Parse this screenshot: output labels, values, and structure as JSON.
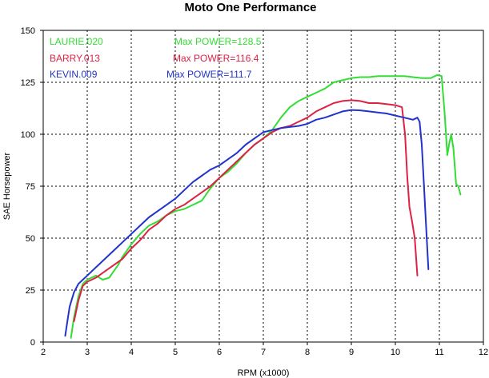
{
  "chart_data": {
    "type": "line",
    "title": "Moto One Performance",
    "xlabel": "RPM (x1000)",
    "ylabel": "SAE Horsepower",
    "xlim": [
      2,
      12
    ],
    "ylim": [
      0,
      150
    ],
    "xticks": [
      2,
      3,
      4,
      5,
      6,
      7,
      8,
      9,
      10,
      11,
      12
    ],
    "yticks": [
      0,
      25,
      50,
      75,
      100,
      125,
      150
    ],
    "grid": true,
    "legend_placement": "top-left",
    "series": [
      {
        "name": "LAURIE.020",
        "annotation": "Max POWER=128.5",
        "color": "#33dd33",
        "x": [
          2.63,
          2.7,
          2.8,
          2.9,
          3.0,
          3.1,
          3.2,
          3.35,
          3.5,
          3.6,
          3.7,
          3.8,
          3.9,
          4.0,
          4.2,
          4.4,
          4.6,
          4.8,
          5.0,
          5.2,
          5.4,
          5.6,
          5.8,
          6.0,
          6.2,
          6.4,
          6.6,
          6.8,
          7.0,
          7.2,
          7.4,
          7.6,
          7.8,
          8.0,
          8.2,
          8.4,
          8.6,
          8.8,
          9.0,
          9.2,
          9.4,
          9.6,
          9.8,
          10.0,
          10.2,
          10.4,
          10.6,
          10.8,
          10.95,
          11.05,
          11.12,
          11.18,
          11.22,
          11.27,
          11.32,
          11.38,
          11.43,
          11.48
        ],
        "values": [
          2,
          12,
          22,
          28,
          30,
          31,
          32,
          30,
          31,
          34,
          37,
          41,
          44,
          47,
          52,
          56,
          58,
          61,
          63,
          64,
          66,
          68,
          74,
          79,
          82,
          86,
          91,
          95,
          98,
          102,
          108,
          113,
          116,
          118,
          120,
          122,
          125,
          126,
          127,
          127.5,
          127.5,
          128,
          128,
          128,
          128,
          127.5,
          127,
          127,
          128.5,
          128,
          110,
          90,
          95,
          100,
          93,
          76,
          75,
          71
        ]
      },
      {
        "name": "BARRY.013",
        "annotation": "Max POWER=116.4",
        "color": "#dd2244",
        "x": [
          2.7,
          2.8,
          2.9,
          3.0,
          3.1,
          3.2,
          3.4,
          3.6,
          3.8,
          4.0,
          4.2,
          4.4,
          4.6,
          4.8,
          5.0,
          5.2,
          5.4,
          5.6,
          5.8,
          6.0,
          6.2,
          6.4,
          6.6,
          6.8,
          7.0,
          7.2,
          7.4,
          7.6,
          7.8,
          8.0,
          8.2,
          8.4,
          8.6,
          8.8,
          9.0,
          9.2,
          9.4,
          9.6,
          9.8,
          10.0,
          10.15,
          10.22,
          10.27,
          10.32,
          10.38,
          10.44,
          10.5
        ],
        "values": [
          10,
          20,
          27,
          29,
          30,
          31,
          34,
          37,
          40,
          45,
          49,
          54,
          57,
          61,
          64,
          66,
          69,
          72,
          75,
          79,
          83,
          87,
          91,
          95,
          98,
          101,
          103,
          104,
          106,
          108,
          111,
          113,
          115,
          116,
          116.4,
          116,
          115,
          115,
          114.5,
          114,
          113,
          100,
          80,
          65,
          58,
          50,
          32
        ]
      },
      {
        "name": "KEVIN.009",
        "annotation": "Max POWER=111.7",
        "color": "#2233cc",
        "x": [
          2.5,
          2.55,
          2.6,
          2.7,
          2.8,
          2.9,
          3.0,
          3.2,
          3.4,
          3.6,
          3.8,
          4.0,
          4.2,
          4.4,
          4.6,
          4.8,
          5.0,
          5.2,
          5.4,
          5.6,
          5.8,
          6.0,
          6.2,
          6.4,
          6.6,
          6.8,
          7.0,
          7.2,
          7.4,
          7.6,
          7.8,
          8.0,
          8.2,
          8.4,
          8.6,
          8.8,
          9.0,
          9.2,
          9.4,
          9.6,
          9.8,
          10.0,
          10.2,
          10.4,
          10.5,
          10.55,
          10.6,
          10.65,
          10.7,
          10.75
        ],
        "values": [
          3,
          10,
          17,
          24,
          28,
          30,
          32,
          36,
          40,
          44,
          48,
          52,
          56,
          60,
          63,
          66,
          69,
          73,
          77,
          80,
          83,
          85,
          88,
          91,
          95,
          98,
          101,
          102,
          103,
          103.5,
          104,
          105,
          107,
          108,
          109.5,
          111,
          111.7,
          111.5,
          111,
          110.5,
          110,
          109,
          108,
          107,
          108,
          106,
          95,
          75,
          55,
          35
        ]
      }
    ]
  }
}
